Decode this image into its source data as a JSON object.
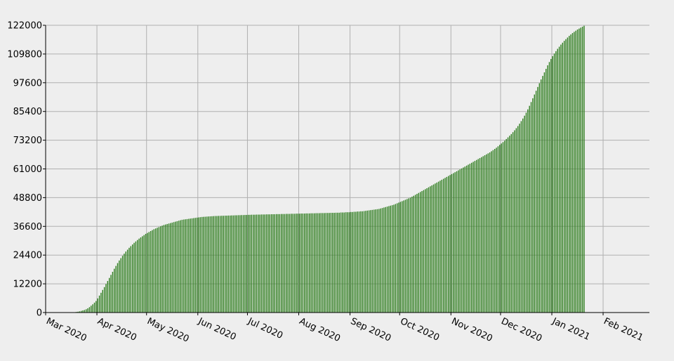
{
  "chart_data": {
    "type": "bar",
    "title": "",
    "xlabel": "",
    "ylabel": "",
    "ylim": [
      0,
      122000
    ],
    "y_ticks": [
      0,
      12200,
      24400,
      36600,
      48800,
      61000,
      73200,
      85400,
      97600,
      109800,
      122000
    ],
    "x_tick_labels": [
      "Mar 2020",
      "Apr 2020",
      "May 2020",
      "Jun 2020",
      "Jul 2020",
      "Aug 2020",
      "Sep 2020",
      "Oct 2020",
      "Nov 2020",
      "Dec 2020",
      "Jan 2021",
      "Feb 2021"
    ],
    "x_tick_dates": [
      "2020-03-01",
      "2020-04-01",
      "2020-05-01",
      "2020-06-01",
      "2020-07-01",
      "2020-08-01",
      "2020-09-01",
      "2020-10-01",
      "2020-11-01",
      "2020-12-01",
      "2021-01-01",
      "2021-02-01"
    ],
    "x_range": [
      "2020-03-01",
      "2021-02-28"
    ],
    "grid": true,
    "legend": "none",
    "bar_color": "#2e7d1e",
    "series": [
      {
        "daily": true,
        "first_date": "2020-03-01",
        "values": [
          0,
          0,
          0,
          0,
          0,
          0,
          0,
          0,
          0,
          0,
          0,
          0,
          0,
          0,
          0,
          0,
          100,
          150,
          250,
          350,
          500,
          700,
          900,
          1100,
          1400,
          1800,
          2300,
          2900,
          3500,
          4200,
          4900,
          6000,
          7200,
          8400,
          9600,
          10800,
          12100,
          13400,
          14700,
          16000,
          17300,
          18600,
          19800,
          21000,
          22100,
          23100,
          24100,
          25000,
          25900,
          26700,
          27500,
          28200,
          28900,
          29600,
          30200,
          30800,
          31400,
          31900,
          32400,
          32900,
          33400,
          33800,
          34200,
          34600,
          35000,
          35400,
          35700,
          36000,
          36300,
          36600,
          36900,
          37200,
          37400,
          37600,
          37800,
          38000,
          38200,
          38400,
          38600,
          38800,
          39000,
          39200,
          39400,
          39500,
          39600,
          39700,
          39800,
          39900,
          40000,
          40100,
          40200,
          40300,
          40400,
          40500,
          40600,
          40650,
          40700,
          40750,
          40800,
          40850,
          40900,
          40950,
          41000,
          41000,
          41050,
          41050,
          41100,
          41100,
          41150,
          41150,
          41200,
          41200,
          41250,
          41250,
          41300,
          41300,
          41350,
          41350,
          41400,
          41400,
          41450,
          41450,
          41500,
          41500,
          41550,
          41550,
          41550,
          41600,
          41600,
          41600,
          41650,
          41650,
          41650,
          41700,
          41700,
          41700,
          41750,
          41750,
          41750,
          41800,
          41800,
          41800,
          41850,
          41850,
          41850,
          41900,
          41900,
          41900,
          41950,
          41950,
          41950,
          42000,
          42000,
          42000,
          42050,
          42050,
          42050,
          42100,
          42100,
          42100,
          42150,
          42150,
          42150,
          42200,
          42200,
          42200,
          42250,
          42250,
          42250,
          42300,
          42300,
          42300,
          42350,
          42350,
          42350,
          42400,
          42400,
          42400,
          42500,
          42500,
          42500,
          42600,
          42600,
          42600,
          42700,
          42700,
          42800,
          42800,
          42900,
          42900,
          43000,
          43000,
          43100,
          43200,
          43300,
          43400,
          43500,
          43600,
          43700,
          43800,
          43900,
          44000,
          44200,
          44400,
          44600,
          44800,
          45000,
          45200,
          45400,
          45600,
          45800,
          46100,
          46400,
          46700,
          47000,
          47300,
          47600,
          47900,
          48200,
          48500,
          48800,
          49200,
          49600,
          50000,
          50400,
          50800,
          51200,
          51600,
          52000,
          52400,
          52800,
          53200,
          53600,
          54000,
          54400,
          54800,
          55200,
          55600,
          56000,
          56400,
          56800,
          57200,
          57600,
          58000,
          58400,
          58800,
          59200,
          59600,
          60000,
          60400,
          60800,
          61200,
          61600,
          62000,
          62400,
          62800,
          63200,
          63600,
          64000,
          64400,
          64800,
          65200,
          65600,
          66000,
          66400,
          66800,
          67200,
          67600,
          68000,
          68500,
          69000,
          69500,
          70000,
          70600,
          71200,
          71800,
          72400,
          73000,
          73700,
          74400,
          75100,
          75800,
          76600,
          77400,
          78300,
          79200,
          80200,
          81300,
          82400,
          83600,
          84900,
          86300,
          87800,
          89400,
          91000,
          92600,
          94200,
          95800,
          97400,
          99000,
          100500,
          102000,
          103500,
          105000,
          106400,
          107700,
          108900,
          110000,
          111000,
          112000,
          112900,
          113800,
          114600,
          115400,
          116100,
          116800,
          117500,
          118100,
          118700,
          119200,
          119700,
          120200,
          120600,
          121000,
          121400,
          121800
        ]
      }
    ]
  }
}
